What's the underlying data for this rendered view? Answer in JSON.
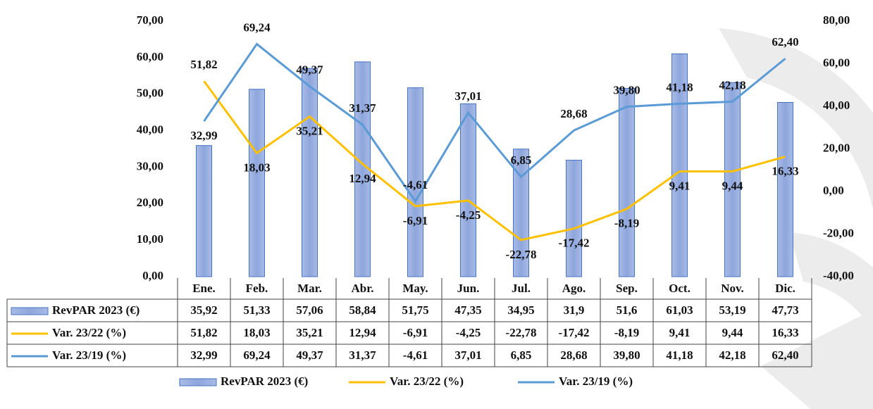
{
  "chart_data": {
    "type": "combo",
    "categories": [
      "Ene.",
      "Feb.",
      "Mar.",
      "Abr.",
      "May.",
      "Jun.",
      "Jul.",
      "Ago.",
      "Sep.",
      "Oct.",
      "Nov.",
      "Dic."
    ],
    "series": [
      {
        "name": "RevPAR 2023 (€)",
        "type": "bar",
        "axis": "y",
        "color": "#8ea6dc",
        "values": [
          35.92,
          51.33,
          57.06,
          58.84,
          51.75,
          47.35,
          34.95,
          31.9,
          51.6,
          61.03,
          53.19,
          47.73
        ],
        "value_labels": [
          "35,92",
          "51,33",
          "57,06",
          "58,84",
          "51,75",
          "47,35",
          "34,95",
          "31,9",
          "51,6",
          "61,03",
          "53,19",
          "47,73"
        ]
      },
      {
        "name": "Var. 23/22 (%)",
        "type": "line",
        "axis": "y2",
        "color": "#ffc000",
        "values": [
          51.82,
          18.03,
          35.21,
          12.94,
          -6.91,
          -4.25,
          -22.78,
          -17.42,
          -8.19,
          9.41,
          9.44,
          16.33
        ],
        "value_labels": [
          "51,82",
          "18,03",
          "35,21",
          "12,94",
          "-6,91",
          "-4,25",
          "-22,78",
          "-17,42",
          "-8,19",
          "9,41",
          "9,44",
          "16,33"
        ]
      },
      {
        "name": "Var. 23/19 (%)",
        "type": "line",
        "axis": "y2",
        "color": "#5b9bd5",
        "values": [
          32.99,
          69.24,
          49.37,
          31.37,
          -4.61,
          37.01,
          6.85,
          28.68,
          39.8,
          41.18,
          42.18,
          62.4
        ],
        "value_labels": [
          "32,99",
          "69,24",
          "49,37",
          "31,37",
          "-4,61",
          "37,01",
          "6,85",
          "28,68",
          "39,80",
          "41,18",
          "42,18",
          "62,40"
        ]
      }
    ],
    "ylim": [
      0,
      70
    ],
    "yticks": [
      {
        "value": 0,
        "label": "0,00"
      },
      {
        "value": 10,
        "label": "10,00"
      },
      {
        "value": 20,
        "label": "20,00"
      },
      {
        "value": 30,
        "label": "30,00"
      },
      {
        "value": 40,
        "label": "40,00"
      },
      {
        "value": 50,
        "label": "50,00"
      },
      {
        "value": 60,
        "label": "60,00"
      },
      {
        "value": 70,
        "label": "70,00"
      }
    ],
    "y2lim": [
      -40,
      80
    ],
    "y2ticks": [
      {
        "value": -40,
        "label": "-40,00"
      },
      {
        "value": -20,
        "label": "-20,00"
      },
      {
        "value": 0,
        "label": "0,00"
      },
      {
        "value": 20,
        "label": "20,00"
      },
      {
        "value": 40,
        "label": "40,00"
      },
      {
        "value": 60,
        "label": "60,00"
      },
      {
        "value": 80,
        "label": "80,00"
      }
    ]
  }
}
